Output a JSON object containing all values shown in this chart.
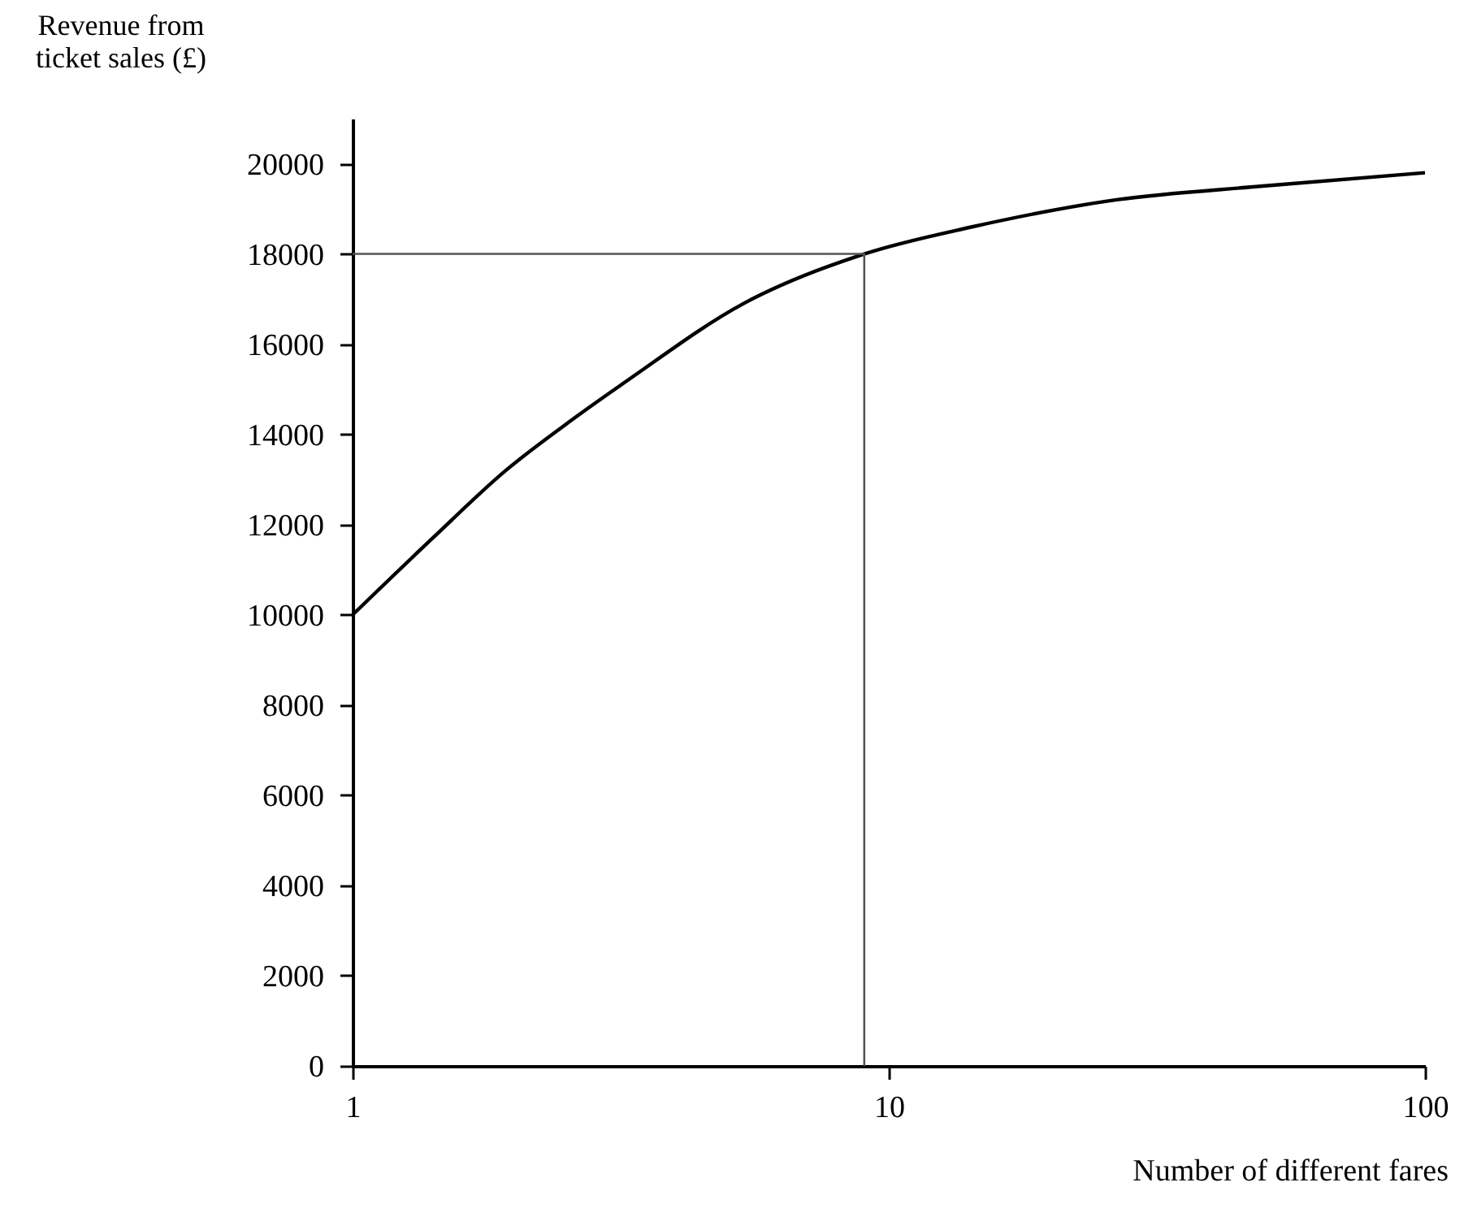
{
  "chart_data": {
    "type": "line",
    "xlabel": "Number of different fares",
    "ylabel": "Revenue from ticket sales (£)",
    "log": "x",
    "xlim": [
      1,
      100
    ],
    "xticks": [
      1,
      10,
      100
    ],
    "ylim": [
      0,
      21000
    ],
    "yticks": [
      0,
      2000,
      4000,
      6000,
      8000,
      10000,
      12000,
      14000,
      16000,
      18000,
      20000
    ],
    "grid": false,
    "marker": "none",
    "line_style": "solid",
    "series": [
      {
        "color": "#000000",
        "x": [
          1,
          1.41,
          1.93,
          2.55,
          3.26,
          5.36,
          9,
          14.3,
          26.6,
          49.3,
          100
        ],
        "values": [
          10000,
          11700,
          13200,
          14300,
          15200,
          16900,
          18000,
          18600,
          19200,
          19500,
          19800
        ]
      },
      {
        "color": "#555555",
        "x": [
          1,
          9,
          9
        ],
        "values": [
          18000,
          18000,
          0
        ]
      }
    ]
  }
}
